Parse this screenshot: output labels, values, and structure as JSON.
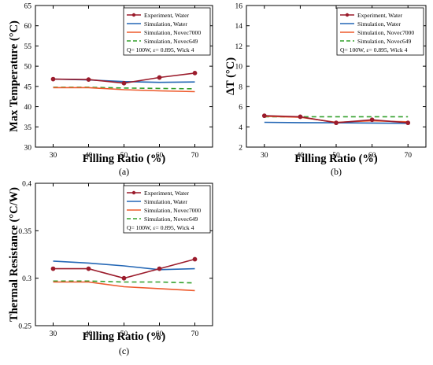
{
  "chart_data": [
    {
      "type": "line",
      "panel_label": "(a)",
      "xlabel": "Filling Ratio (%)",
      "ylabel": "Max Temperature (°C)",
      "x": [
        30,
        40,
        50,
        60,
        70
      ],
      "xlim": [
        25,
        75
      ],
      "ylim": [
        30,
        65
      ],
      "xticks": [
        30,
        40,
        50,
        60,
        70
      ],
      "yticks": [
        30,
        35,
        40,
        45,
        50,
        55,
        60,
        65
      ],
      "legend_position": "top-right",
      "annotation": "Q= 100W,  ε= 0.895, Wick 4",
      "series": [
        {
          "name": "Experiment, Water",
          "color": "#9b1c2c",
          "dash": "",
          "markers": true,
          "values": [
            46.8,
            46.7,
            45.8,
            47.2,
            48.3
          ]
        },
        {
          "name": "Simulation, Water",
          "color": "#2467b5",
          "dash": "",
          "markers": false,
          "values": [
            46.8,
            46.6,
            46.2,
            46.0,
            46.1
          ]
        },
        {
          "name": "Simulation, Novec7000",
          "color": "#ee5a2c",
          "dash": "",
          "markers": false,
          "values": [
            44.7,
            44.7,
            44.2,
            43.9,
            43.7
          ]
        },
        {
          "name": "Simulation, Novec649",
          "color": "#33a02c",
          "dash": "6,4",
          "markers": false,
          "values": [
            44.8,
            44.8,
            44.6,
            44.5,
            44.4
          ]
        }
      ]
    },
    {
      "type": "line",
      "panel_label": "(b)",
      "xlabel": "Filling Ratio (%)",
      "ylabel": "ΔT (°C)",
      "x": [
        30,
        40,
        50,
        60,
        70
      ],
      "xlim": [
        25,
        75
      ],
      "ylim": [
        2,
        16
      ],
      "xticks": [
        30,
        40,
        50,
        60,
        70
      ],
      "yticks": [
        2,
        4,
        6,
        8,
        10,
        12,
        14,
        16
      ],
      "legend_position": "top-right",
      "annotation": "Q= 100W,  ε= 0.895, Wick 4",
      "series": [
        {
          "name": "Experiment, Water",
          "color": "#9b1c2c",
          "dash": "",
          "markers": true,
          "values": [
            5.1,
            5.0,
            4.4,
            4.7,
            4.4
          ]
        },
        {
          "name": "Simulation, Water",
          "color": "#2467b5",
          "dash": "",
          "markers": false,
          "values": [
            4.45,
            4.42,
            4.4,
            4.38,
            4.35
          ]
        },
        {
          "name": "Simulation, Novec7000",
          "color": "#ee5a2c",
          "dash": "",
          "markers": false,
          "values": [
            5.05,
            4.95,
            4.45,
            4.6,
            4.5
          ]
        },
        {
          "name": "Simulation, Novec649",
          "color": "#33a02c",
          "dash": "6,4",
          "markers": false,
          "values": [
            5.0,
            5.0,
            5.0,
            5.0,
            5.0
          ]
        }
      ]
    },
    {
      "type": "line",
      "panel_label": "(c)",
      "xlabel": "Filling Ratio (%)",
      "ylabel": "Thermal Resistance (°C/W)",
      "x": [
        30,
        40,
        50,
        60,
        70
      ],
      "xlim": [
        25,
        75
      ],
      "ylim": [
        0.25,
        0.4
      ],
      "xticks": [
        30,
        40,
        50,
        60,
        70
      ],
      "yticks": [
        0.25,
        0.3,
        0.35,
        0.4
      ],
      "legend_position": "top-right",
      "annotation": "Q= 100W,  ε= 0.895, Wick 4",
      "series": [
        {
          "name": "Experiment, Water",
          "color": "#9b1c2c",
          "dash": "",
          "markers": true,
          "values": [
            0.31,
            0.31,
            0.3,
            0.31,
            0.32
          ]
        },
        {
          "name": "Simulation, Water",
          "color": "#2467b5",
          "dash": "",
          "markers": false,
          "values": [
            0.318,
            0.316,
            0.313,
            0.309,
            0.31
          ]
        },
        {
          "name": "Simulation, Novec7000",
          "color": "#ee5a2c",
          "dash": "",
          "markers": false,
          "values": [
            0.296,
            0.296,
            0.291,
            0.289,
            0.287
          ]
        },
        {
          "name": "Simulation, Novec649",
          "color": "#33a02c",
          "dash": "6,4",
          "markers": false,
          "values": [
            0.297,
            0.297,
            0.296,
            0.296,
            0.295
          ]
        }
      ]
    }
  ]
}
